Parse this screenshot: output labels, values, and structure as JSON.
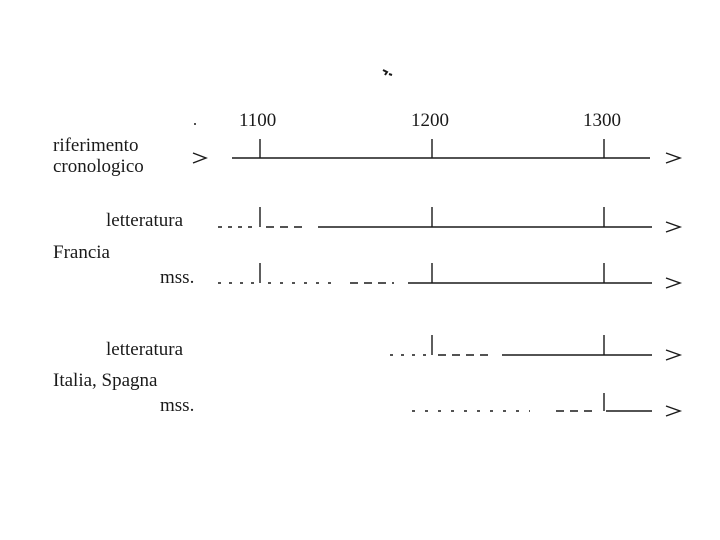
{
  "years": [
    "1100",
    "1200",
    "1300"
  ],
  "rows": {
    "riferimento_line1": "riferimento",
    "riferimento_line2": "cronologico",
    "francia_group": "Francia",
    "francia_letteratura": "letteratura",
    "francia_mss": "mss.",
    "italia_letteratura": "letteratura",
    "italia_group": "Italia, Spagna",
    "italia_mss": "mss."
  }
}
